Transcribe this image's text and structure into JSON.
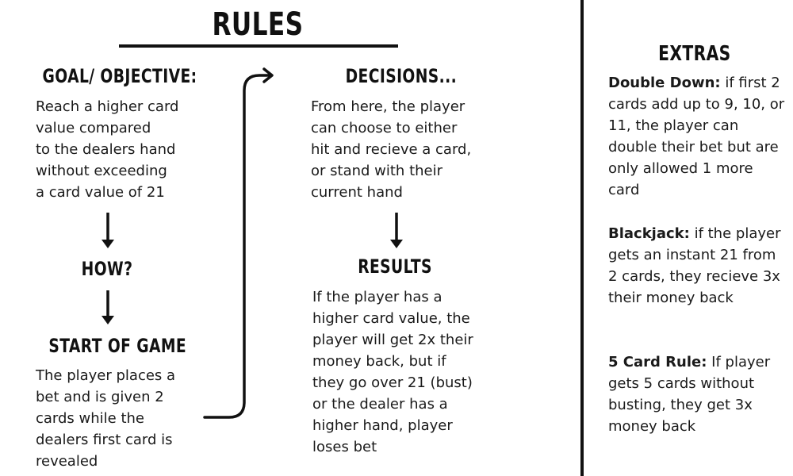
{
  "title": "RULES",
  "goal": {
    "heading": "GOAL/ OBJECTIVE:",
    "text": "Reach a higher card\nvalue compared\nto the dealers hand\nwithout exceeding\na card value of 21"
  },
  "how": {
    "heading": "HOW?"
  },
  "start_of_game": {
    "heading": "START OF GAME",
    "text": "The player places a\nbet and is given 2\ncards while the\ndealers first card is\nrevealed"
  },
  "decisions": {
    "heading": "DECISIONS...",
    "text": "From here, the player\ncan choose to either\nhit and recieve a card,\nor stand with their\ncurrent hand"
  },
  "results": {
    "heading": "RESULTS",
    "text": "If the player has a\nhigher card value, the\nplayer will get 2x their\nmoney back, but if\nthey go over 21 (bust)\nor the dealer has a\nhigher hand, player\nloses bet"
  },
  "extras": {
    "heading": "EXTRAS",
    "double_down": {
      "label": "Double Down:",
      "text": " if first 2 cards add up to 9, 10, or 11, the player can double their bet but are only allowed 1 more card"
    },
    "blackjack": {
      "label": "Blackjack:",
      "text": " if the player gets an instant 21 from 2 cards, they recieve 3x their money back"
    },
    "five_card_rule": {
      "label": "5 Card Rule:",
      "text": " If player gets 5 cards without busting, they get 3x money back"
    }
  }
}
